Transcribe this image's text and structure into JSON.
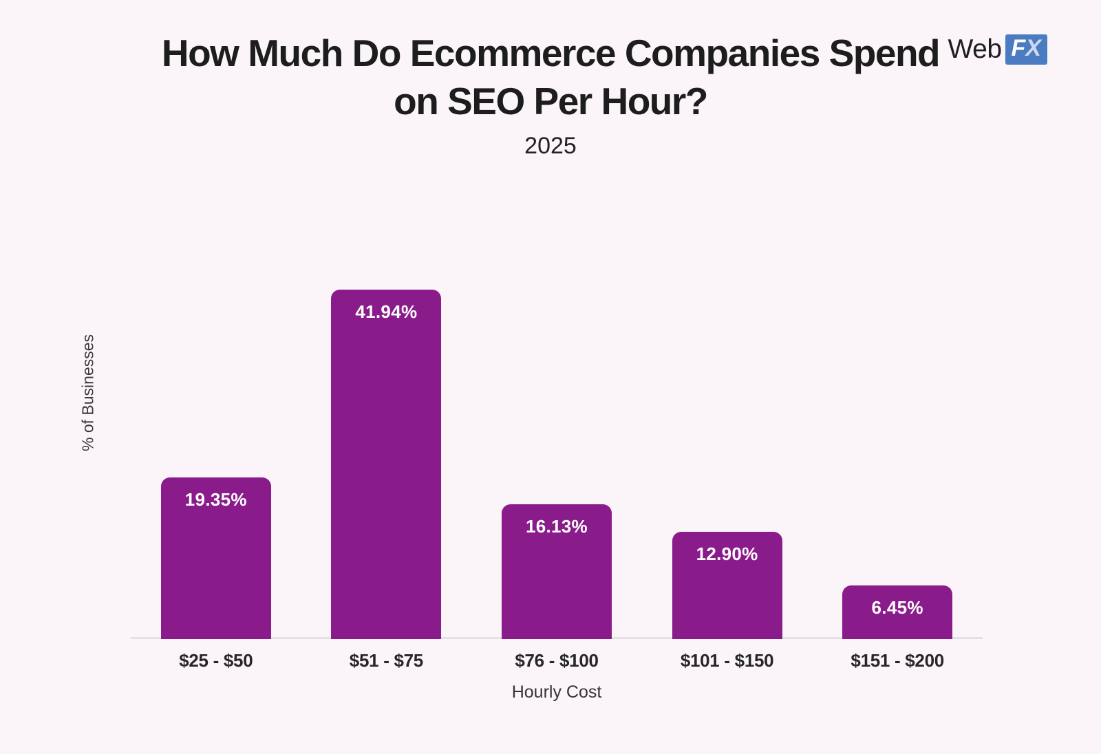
{
  "header": {
    "title": "How Much Do Ecommerce Companies Spend on SEO Per Hour?",
    "subtitle": "2025",
    "logo": {
      "text_web": "Web",
      "text_f": "F",
      "text_x": "X",
      "box_color": "#4b7cc1"
    }
  },
  "chart_data": {
    "type": "bar",
    "title": "How Much Do Ecommerce Companies Spend on SEO Per Hour?",
    "subtitle": "2025",
    "categories": [
      "$25 - $50",
      "$51 - $75",
      "$76 - $100",
      "$101 - $150",
      "$151 - $200"
    ],
    "values": [
      19.35,
      41.94,
      16.13,
      12.9,
      6.45
    ],
    "value_labels": [
      "19.35%",
      "41.94%",
      "16.13%",
      "12.90%",
      "6.45%"
    ],
    "xlabel": "Hourly Cost",
    "ylabel": "% of Businesses",
    "ylim": [
      0,
      45
    ],
    "grid": false,
    "legend": "none",
    "bar_color": "#8A1B8B",
    "value_label_color": "#ffffff",
    "background_color": "#FBF5FA",
    "axis_line_color": "#e4e0e4"
  }
}
